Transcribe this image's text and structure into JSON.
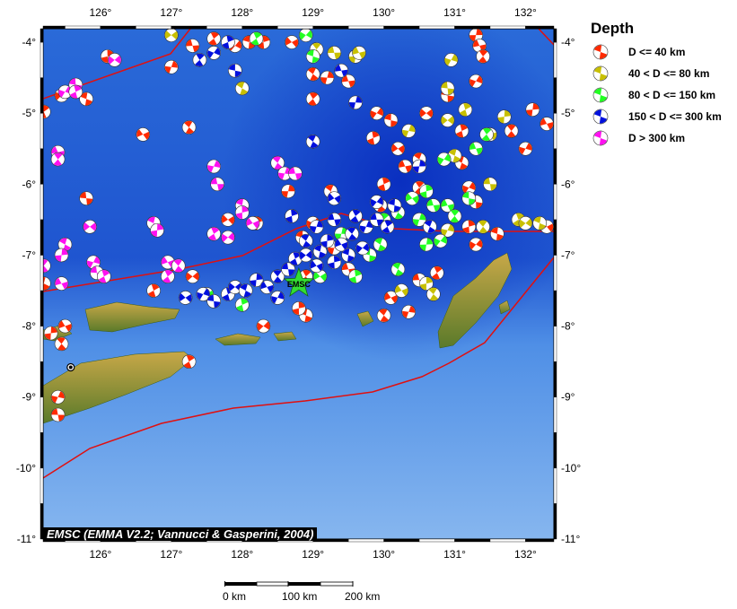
{
  "map": {
    "lon_ticks": [
      "126°",
      "127°",
      "128°",
      "129°",
      "130°",
      "131°",
      "132°"
    ],
    "lon_values": [
      126,
      127,
      128,
      129,
      130,
      131,
      132
    ],
    "lat_ticks": [
      "-4°",
      "-5°",
      "-6°",
      "-7°",
      "-8°",
      "-9°",
      "-10°",
      "-11°"
    ],
    "lat_values": [
      -4,
      -5,
      -6,
      -7,
      -8,
      -9,
      -10,
      -11
    ],
    "extent": {
      "lon": [
        125.19,
        132.4
      ],
      "lat": [
        -11,
        -3.81
      ]
    },
    "station_label": "EMSC",
    "station": [
      128.8,
      -7.4
    ],
    "marker": [
      125.58,
      -8.58
    ],
    "colors": {
      "d40": "#ff2a00",
      "d80": "#c8c000",
      "d150": "#22ff22",
      "d300": "#0010dd",
      "d300p": "#ff10f0",
      "plate": "#e01010",
      "star": "#33dd33"
    },
    "events": {
      "d40": [
        [
          125.2,
          -4.98
        ],
        [
          125.45,
          -4.75
        ],
        [
          125.8,
          -4.8
        ],
        [
          126.1,
          -4.2
        ],
        [
          126.6,
          -5.3
        ],
        [
          127.25,
          -5.2
        ],
        [
          127.0,
          -4.35
        ],
        [
          127.3,
          -4.05
        ],
        [
          127.6,
          -3.95
        ],
        [
          127.9,
          -4.05
        ],
        [
          128.1,
          -4.0
        ],
        [
          128.3,
          -4.0
        ],
        [
          128.7,
          -4.0
        ],
        [
          129.0,
          -4.45
        ],
        [
          129.2,
          -4.5
        ],
        [
          129.5,
          -4.55
        ],
        [
          129.0,
          -4.8
        ],
        [
          129.9,
          -5.0
        ],
        [
          130.1,
          -5.1
        ],
        [
          129.85,
          -5.35
        ],
        [
          130.2,
          -5.5
        ],
        [
          130.5,
          -5.65
        ],
        [
          131.3,
          -3.9
        ],
        [
          131.35,
          -4.05
        ],
        [
          131.4,
          -4.2
        ],
        [
          131.3,
          -4.55
        ],
        [
          130.9,
          -4.75
        ],
        [
          131.1,
          -5.25
        ],
        [
          130.6,
          -5.0
        ],
        [
          131.1,
          -5.7
        ],
        [
          132.1,
          -4.95
        ],
        [
          132.3,
          -5.15
        ],
        [
          131.8,
          -5.25
        ],
        [
          132.0,
          -5.5
        ],
        [
          125.8,
          -6.2
        ],
        [
          126.75,
          -7.5
        ],
        [
          127.3,
          -7.3
        ],
        [
          125.2,
          -7.4
        ],
        [
          125.3,
          -8.1
        ],
        [
          125.5,
          -8.0
        ],
        [
          125.45,
          -8.25
        ],
        [
          125.4,
          -9.0
        ],
        [
          125.4,
          -9.25
        ],
        [
          127.25,
          -8.5
        ],
        [
          128.3,
          -8.0
        ],
        [
          128.9,
          -7.85
        ],
        [
          128.8,
          -7.75
        ],
        [
          130.1,
          -7.6
        ],
        [
          130.0,
          -7.85
        ],
        [
          130.35,
          -7.8
        ],
        [
          130.5,
          -7.35
        ],
        [
          130.75,
          -7.25
        ],
        [
          131.3,
          -6.85
        ],
        [
          131.6,
          -6.7
        ],
        [
          131.2,
          -6.6
        ],
        [
          132.3,
          -6.6
        ],
        [
          129.95,
          -6.3
        ],
        [
          129.3,
          -6.9
        ],
        [
          129.5,
          -7.2
        ],
        [
          128.9,
          -7.3
        ],
        [
          129.0,
          -6.55
        ],
        [
          128.85,
          -6.75
        ],
        [
          128.2,
          -6.55
        ],
        [
          127.8,
          -6.5
        ],
        [
          129.25,
          -6.1
        ],
        [
          128.65,
          -6.1
        ],
        [
          130.3,
          -5.75
        ],
        [
          130.5,
          -6.05
        ],
        [
          131.2,
          -6.05
        ],
        [
          131.3,
          -6.25
        ],
        [
          130.0,
          -6.0
        ]
      ],
      "d80": [
        [
          127.0,
          -3.9
        ],
        [
          128.0,
          -4.65
        ],
        [
          129.6,
          -4.2
        ],
        [
          129.65,
          -4.15
        ],
        [
          129.05,
          -4.1
        ],
        [
          130.95,
          -4.25
        ],
        [
          130.9,
          -4.65
        ],
        [
          131.15,
          -4.95
        ],
        [
          130.9,
          -5.1
        ],
        [
          131.0,
          -5.6
        ],
        [
          131.7,
          -5.05
        ],
        [
          131.5,
          -5.3
        ],
        [
          131.4,
          -6.6
        ],
        [
          130.9,
          -6.65
        ],
        [
          131.5,
          -6.0
        ],
        [
          131.9,
          -6.5
        ],
        [
          132.0,
          -6.55
        ],
        [
          132.2,
          -6.55
        ],
        [
          130.6,
          -7.4
        ],
        [
          130.25,
          -7.5
        ],
        [
          130.7,
          -7.55
        ],
        [
          130.35,
          -5.25
        ],
        [
          129.3,
          -4.15
        ]
      ],
      "d150": [
        [
          128.2,
          -3.95
        ],
        [
          128.9,
          -3.9
        ],
        [
          129.0,
          -4.2
        ],
        [
          130.6,
          -6.1
        ],
        [
          130.4,
          -6.2
        ],
        [
          130.2,
          -6.4
        ],
        [
          130.5,
          -6.5
        ],
        [
          130.7,
          -6.3
        ],
        [
          130.0,
          -6.5
        ],
        [
          130.8,
          -6.8
        ],
        [
          129.8,
          -7.0
        ],
        [
          129.6,
          -7.3
        ],
        [
          129.1,
          -7.3
        ],
        [
          130.2,
          -7.2
        ],
        [
          129.4,
          -6.7
        ],
        [
          131.3,
          -5.5
        ],
        [
          131.45,
          -5.3
        ],
        [
          130.85,
          -5.65
        ],
        [
          131.2,
          -6.2
        ],
        [
          128.0,
          -7.7
        ],
        [
          127.5,
          -7.55
        ],
        [
          129.95,
          -6.85
        ],
        [
          130.6,
          -6.85
        ],
        [
          130.9,
          -6.3
        ],
        [
          131.0,
          -6.45
        ]
      ],
      "d300": [
        [
          127.45,
          -7.55
        ],
        [
          127.6,
          -7.65
        ],
        [
          127.8,
          -7.55
        ],
        [
          127.9,
          -7.45
        ],
        [
          128.05,
          -7.5
        ],
        [
          128.2,
          -7.35
        ],
        [
          128.35,
          -7.45
        ],
        [
          128.5,
          -7.3
        ],
        [
          128.5,
          -7.6
        ],
        [
          128.65,
          -7.2
        ],
        [
          128.75,
          -7.05
        ],
        [
          128.9,
          -7.0
        ],
        [
          129.1,
          -6.95
        ],
        [
          129.2,
          -6.8
        ],
        [
          129.4,
          -6.85
        ],
        [
          129.55,
          -6.7
        ],
        [
          129.75,
          -6.6
        ],
        [
          129.9,
          -6.5
        ],
        [
          130.05,
          -6.6
        ],
        [
          129.7,
          -6.9
        ],
        [
          129.5,
          -7.0
        ],
        [
          129.3,
          -7.1
        ],
        [
          129.05,
          -7.15
        ],
        [
          128.9,
          -6.8
        ],
        [
          129.05,
          -6.6
        ],
        [
          129.3,
          -6.5
        ],
        [
          129.6,
          -6.45
        ],
        [
          129.9,
          -6.25
        ],
        [
          130.15,
          -6.3
        ],
        [
          128.7,
          -6.45
        ],
        [
          129.3,
          -6.2
        ],
        [
          129.0,
          -5.4
        ],
        [
          129.6,
          -4.85
        ],
        [
          129.4,
          -4.4
        ],
        [
          127.4,
          -4.25
        ],
        [
          127.6,
          -4.15
        ],
        [
          127.9,
          -4.4
        ],
        [
          127.8,
          -4.0
        ],
        [
          127.2,
          -7.6
        ],
        [
          130.65,
          -6.6
        ],
        [
          130.5,
          -5.75
        ]
      ],
      "d300p": [
        [
          125.4,
          -5.55
        ],
        [
          125.4,
          -5.65
        ],
        [
          125.5,
          -4.7
        ],
        [
          125.65,
          -4.6
        ],
        [
          125.65,
          -4.7
        ],
        [
          125.85,
          -6.6
        ],
        [
          125.5,
          -6.85
        ],
        [
          125.45,
          -7.0
        ],
        [
          125.45,
          -7.4
        ],
        [
          125.2,
          -7.15
        ],
        [
          125.9,
          -7.1
        ],
        [
          125.95,
          -7.25
        ],
        [
          126.05,
          -7.3
        ],
        [
          126.2,
          -4.25
        ],
        [
          126.75,
          -6.55
        ],
        [
          126.8,
          -6.65
        ],
        [
          126.95,
          -7.1
        ],
        [
          127.1,
          -7.15
        ],
        [
          127.6,
          -5.75
        ],
        [
          127.65,
          -6.0
        ],
        [
          127.6,
          -6.7
        ],
        [
          127.8,
          -6.75
        ],
        [
          128.0,
          -6.3
        ],
        [
          128.0,
          -6.4
        ],
        [
          128.15,
          -6.55
        ],
        [
          128.5,
          -5.7
        ],
        [
          128.6,
          -5.85
        ],
        [
          128.75,
          -5.85
        ],
        [
          126.95,
          -7.3
        ]
      ]
    }
  },
  "legend": {
    "title": "Depth",
    "items": [
      {
        "key": "d40",
        "label": "D <= 40 km"
      },
      {
        "key": "d80",
        "label": "40 < D <= 80 km"
      },
      {
        "key": "d150",
        "label": "80 < D <= 150 km"
      },
      {
        "key": "d300",
        "label": "150 < D <= 300 km"
      },
      {
        "key": "d300p",
        "label": "D > 300 km"
      }
    ]
  },
  "credit": "EMSC (EMMA V2.2; Vannucci & Gasperini, 2004)",
  "scale_bar": {
    "labels": [
      "0 km",
      "100 km",
      "200 km"
    ]
  }
}
